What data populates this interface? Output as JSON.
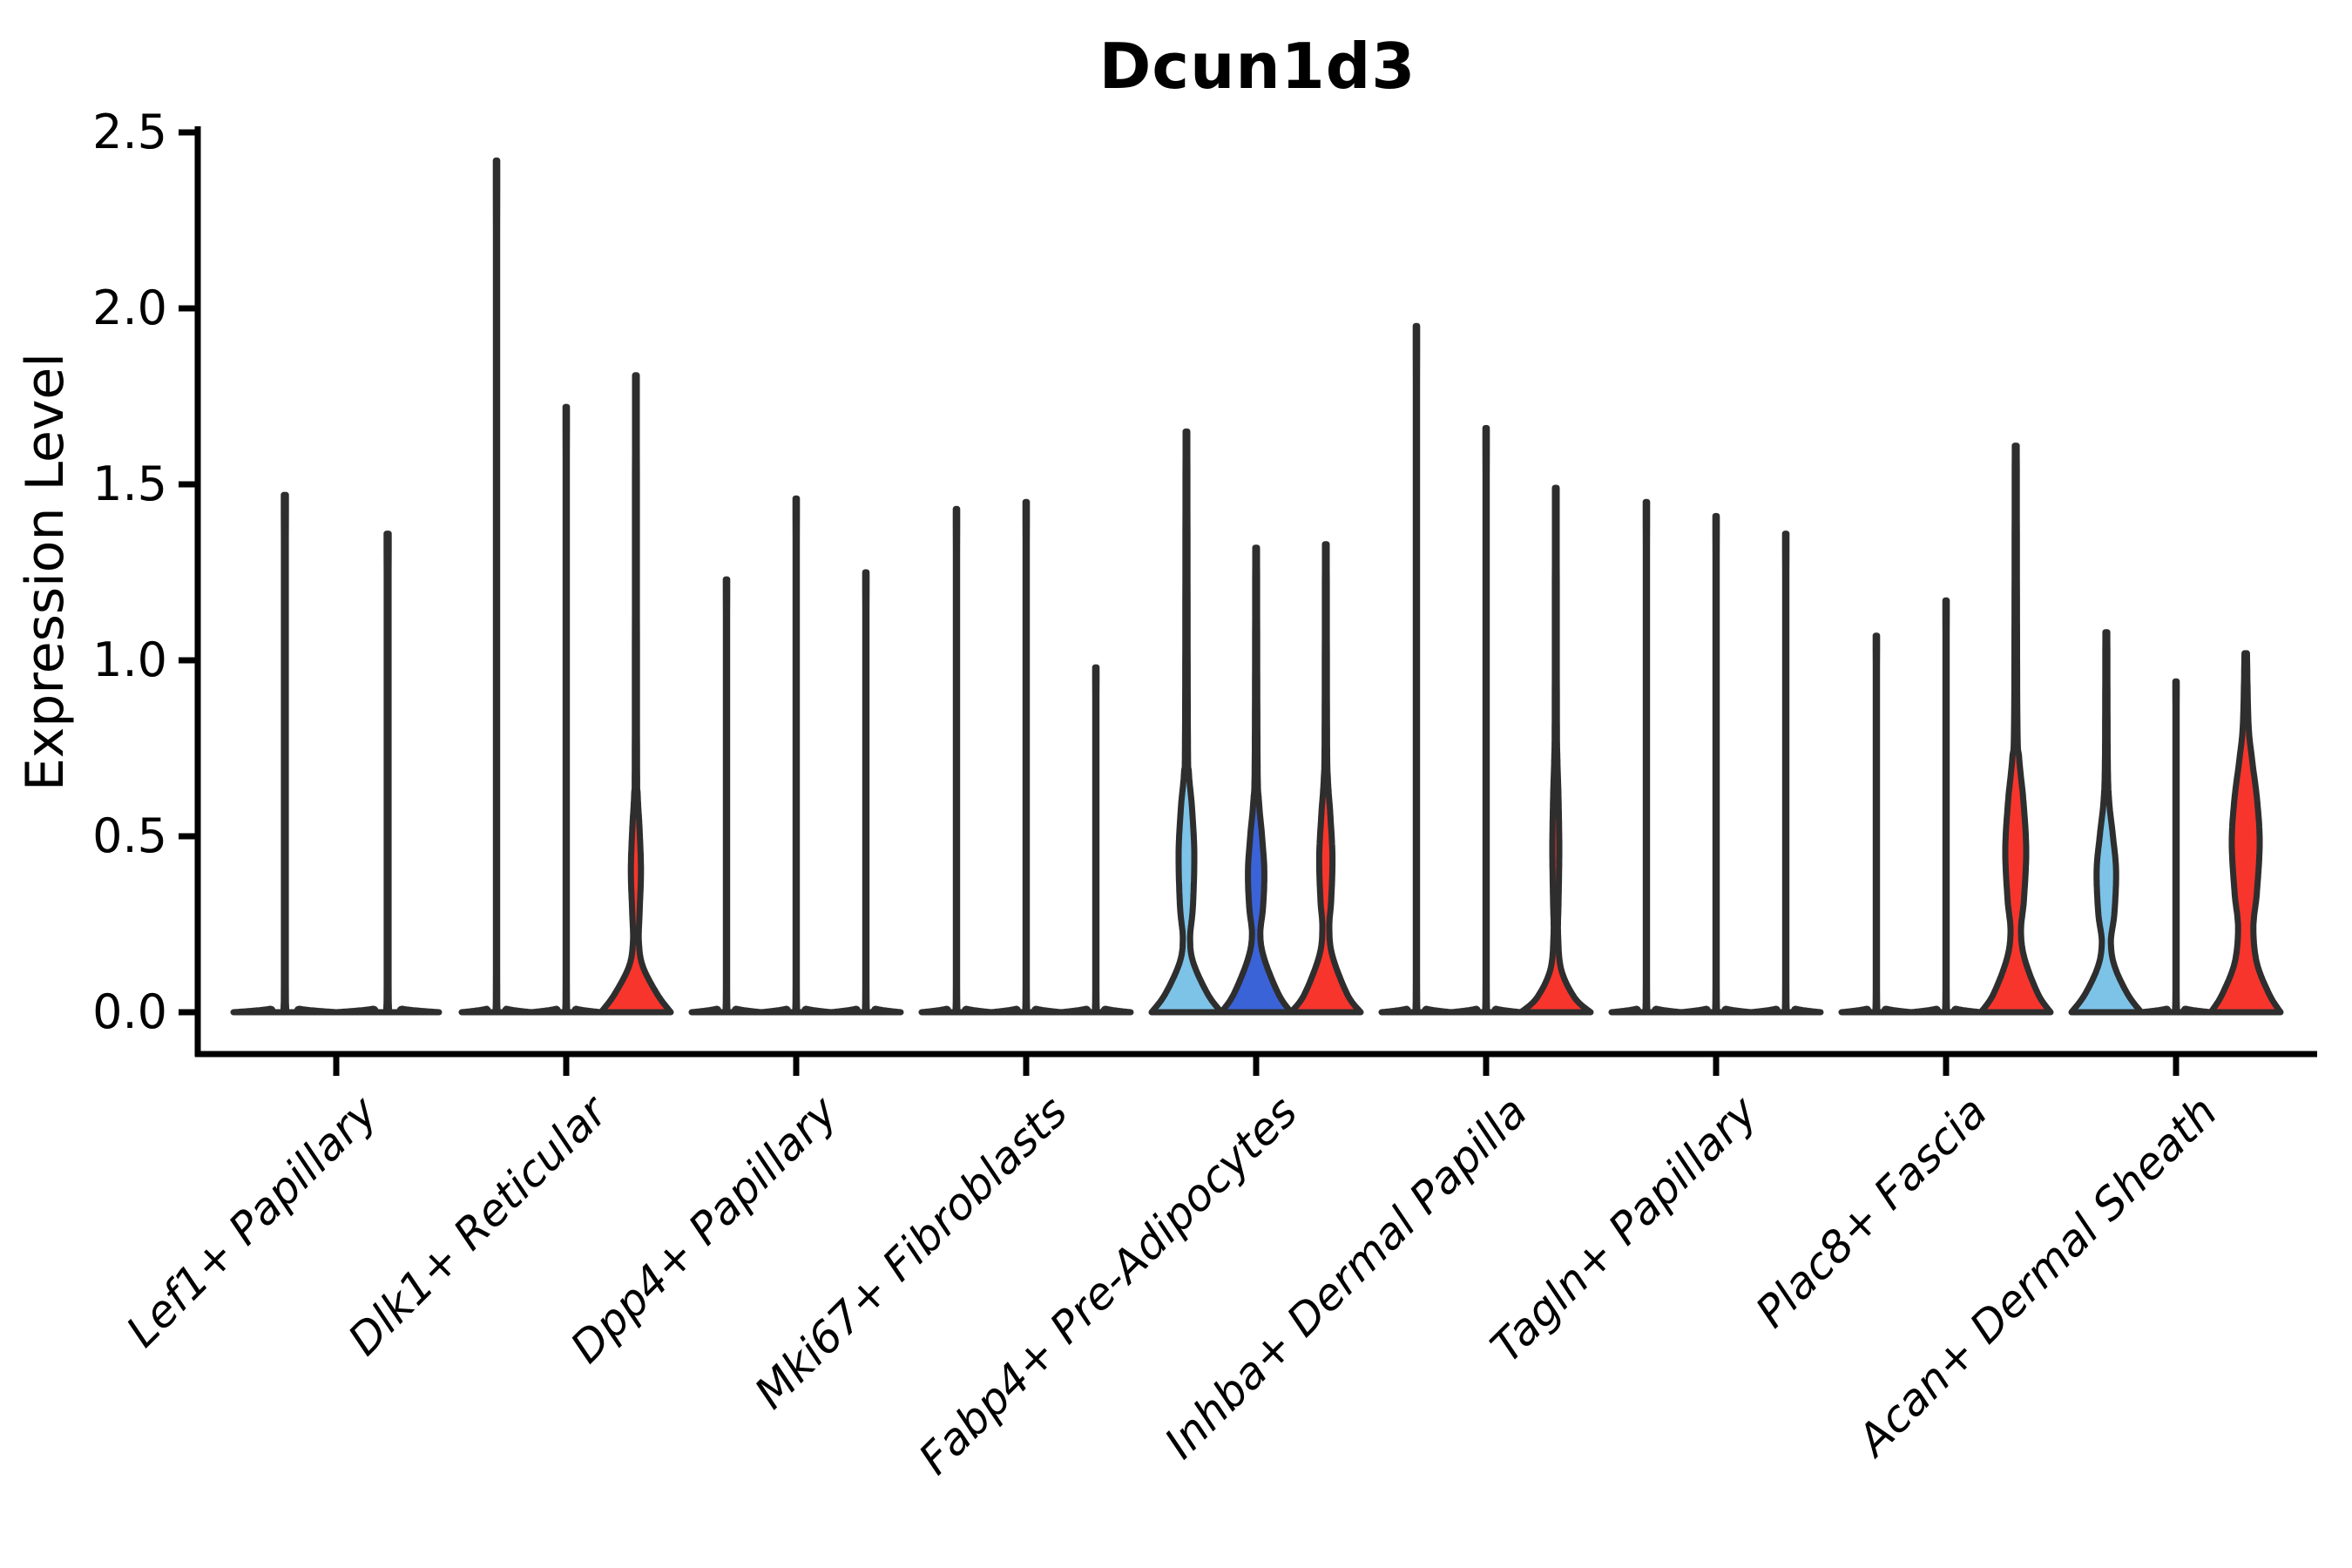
{
  "chart_data": {
    "type": "violin",
    "title": "Dcun1d3",
    "ylabel": "Expression Level",
    "xlabel": "",
    "ylim": [
      0,
      2.5
    ],
    "ytick_values": [
      0,
      0.5,
      1.0,
      1.5,
      2.0,
      2.5
    ],
    "ytick_labels": [
      "0.0",
      "0.5",
      "1.0",
      "1.5",
      "2.0",
      "2.5"
    ],
    "grid": false,
    "legend": "none",
    "xtick_rotation_deg": 45,
    "palette": {
      "red": "#f8352c",
      "light_blue": "#7dc3e8",
      "dark_blue": "#3b63d8",
      "outline": "#2e2e2e",
      "axis": "#000000"
    },
    "categories": [
      "Lef1+ Papillary",
      "Dlk1+ Reticular",
      "Dpp4+ Papillary",
      "Mki67+ Fibroblasts",
      "Fabp4+ Pre-Adipocytes",
      "Inhba+ Dermal Papilla",
      "Tagln+ Papillary",
      "Plac8+ Fascia",
      "Acan+ Dermal Sheath"
    ],
    "groups": [
      {
        "label": "Lef1+ Papillary",
        "violins": [
          {
            "max": 1.47,
            "fill": null,
            "profile": [
              [
                0,
                1.0
              ],
              [
                0.01,
                0.28
              ],
              [
                0.03,
                0.02
              ],
              [
                1.47,
                0.02
              ]
            ]
          },
          {
            "max": 1.36,
            "fill": null,
            "profile": [
              [
                0,
                1.0
              ],
              [
                0.01,
                0.28
              ],
              [
                0.03,
                0.02
              ],
              [
                1.36,
                0.02
              ]
            ]
          }
        ]
      },
      {
        "label": "Dlk1+ Reticular",
        "violins": [
          {
            "max": 2.42,
            "fill": null,
            "profile": [
              [
                0,
                1.0
              ],
              [
                0.01,
                0.28
              ],
              [
                0.03,
                0.02
              ],
              [
                2.42,
                0.02
              ]
            ]
          },
          {
            "max": 1.72,
            "fill": null,
            "profile": [
              [
                0,
                1.0
              ],
              [
                0.01,
                0.28
              ],
              [
                0.03,
                0.02
              ],
              [
                1.72,
                0.02
              ]
            ]
          },
          {
            "max": 1.81,
            "fill": "red",
            "profile": [
              [
                0,
                1.0
              ],
              [
                0.05,
                0.62
              ],
              [
                0.13,
                0.2
              ],
              [
                0.2,
                0.085
              ],
              [
                0.28,
                0.105
              ],
              [
                0.4,
                0.145
              ],
              [
                0.52,
                0.105
              ],
              [
                0.62,
                0.05
              ],
              [
                0.75,
                0.032
              ],
              [
                1.81,
                0.025
              ]
            ]
          }
        ]
      },
      {
        "label": "Dpp4+ Papillary",
        "violins": [
          {
            "max": 1.23,
            "fill": null,
            "profile": [
              [
                0,
                1.0
              ],
              [
                0.01,
                0.28
              ],
              [
                0.03,
                0.02
              ],
              [
                1.23,
                0.02
              ]
            ]
          },
          {
            "max": 1.46,
            "fill": null,
            "profile": [
              [
                0,
                1.0
              ],
              [
                0.01,
                0.28
              ],
              [
                0.03,
                0.02
              ],
              [
                1.46,
                0.02
              ]
            ]
          },
          {
            "max": 1.25,
            "fill": null,
            "profile": [
              [
                0,
                1.0
              ],
              [
                0.01,
                0.28
              ],
              [
                0.03,
                0.02
              ],
              [
                1.25,
                0.02
              ]
            ]
          }
        ]
      },
      {
        "label": "Mki67+ Fibroblasts",
        "violins": [
          {
            "max": 1.43,
            "fill": null,
            "profile": [
              [
                0,
                1.0
              ],
              [
                0.01,
                0.28
              ],
              [
                0.03,
                0.02
              ],
              [
                1.43,
                0.02
              ]
            ]
          },
          {
            "max": 1.45,
            "fill": null,
            "profile": [
              [
                0,
                1.0
              ],
              [
                0.01,
                0.28
              ],
              [
                0.03,
                0.02
              ],
              [
                1.45,
                0.02
              ]
            ]
          },
          {
            "max": 0.98,
            "fill": null,
            "profile": [
              [
                0,
                1.0
              ],
              [
                0.01,
                0.28
              ],
              [
                0.03,
                0.02
              ],
              [
                0.98,
                0.02
              ]
            ]
          }
        ]
      },
      {
        "label": "Fabp4+ Pre-Adipocytes",
        "violins": [
          {
            "max": 1.65,
            "fill": "light_blue",
            "profile": [
              [
                0,
                1.0
              ],
              [
                0.05,
                0.62
              ],
              [
                0.14,
                0.2
              ],
              [
                0.21,
                0.105
              ],
              [
                0.3,
                0.185
              ],
              [
                0.45,
                0.225
              ],
              [
                0.58,
                0.16
              ],
              [
                0.68,
                0.07
              ],
              [
                0.8,
                0.04
              ],
              [
                1.65,
                0.025
              ]
            ]
          },
          {
            "max": 1.32,
            "fill": "dark_blue",
            "profile": [
              [
                0,
                1.0
              ],
              [
                0.05,
                0.65
              ],
              [
                0.15,
                0.24
              ],
              [
                0.22,
                0.12
              ],
              [
                0.3,
                0.2
              ],
              [
                0.4,
                0.235
              ],
              [
                0.5,
                0.17
              ],
              [
                0.6,
                0.08
              ],
              [
                0.72,
                0.04
              ],
              [
                1.32,
                0.025
              ]
            ]
          },
          {
            "max": 1.33,
            "fill": "red",
            "profile": [
              [
                0,
                1.0
              ],
              [
                0.05,
                0.62
              ],
              [
                0.16,
                0.19
              ],
              [
                0.24,
                0.1
              ],
              [
                0.32,
                0.155
              ],
              [
                0.44,
                0.19
              ],
              [
                0.56,
                0.13
              ],
              [
                0.66,
                0.06
              ],
              [
                0.78,
                0.035
              ],
              [
                1.33,
                0.025
              ]
            ]
          }
        ]
      },
      {
        "label": "Inhba+ Dermal Papilla",
        "violins": [
          {
            "max": 1.95,
            "fill": null,
            "profile": [
              [
                0,
                1.0
              ],
              [
                0.01,
                0.28
              ],
              [
                0.03,
                0.02
              ],
              [
                1.95,
                0.02
              ]
            ]
          },
          {
            "max": 1.66,
            "fill": null,
            "profile": [
              [
                0,
                1.0
              ],
              [
                0.01,
                0.28
              ],
              [
                0.03,
                0.02
              ],
              [
                1.66,
                0.02
              ]
            ]
          },
          {
            "max": 1.49,
            "fill": "red",
            "profile": [
              [
                0,
                1.0
              ],
              [
                0.04,
                0.55
              ],
              [
                0.12,
                0.16
              ],
              [
                0.22,
                0.065
              ],
              [
                0.32,
                0.08
              ],
              [
                0.46,
                0.1
              ],
              [
                0.6,
                0.08
              ],
              [
                0.72,
                0.045
              ],
              [
                0.85,
                0.03
              ],
              [
                1.49,
                0.025
              ]
            ]
          }
        ]
      },
      {
        "label": "Tagln+ Papillary",
        "violins": [
          {
            "max": 1.45,
            "fill": null,
            "profile": [
              [
                0,
                1.0
              ],
              [
                0.01,
                0.28
              ],
              [
                0.03,
                0.02
              ],
              [
                1.45,
                0.02
              ]
            ]
          },
          {
            "max": 1.41,
            "fill": null,
            "profile": [
              [
                0,
                1.0
              ],
              [
                0.01,
                0.28
              ],
              [
                0.03,
                0.02
              ],
              [
                1.41,
                0.02
              ]
            ]
          },
          {
            "max": 1.36,
            "fill": null,
            "profile": [
              [
                0,
                1.0
              ],
              [
                0.01,
                0.28
              ],
              [
                0.03,
                0.02
              ],
              [
                1.36,
                0.02
              ]
            ]
          }
        ]
      },
      {
        "label": "Plac8+ Fascia",
        "violins": [
          {
            "max": 1.07,
            "fill": null,
            "profile": [
              [
                0,
                1.0
              ],
              [
                0.01,
                0.28
              ],
              [
                0.03,
                0.02
              ],
              [
                1.07,
                0.02
              ]
            ]
          },
          {
            "max": 1.17,
            "fill": null,
            "profile": [
              [
                0,
                1.0
              ],
              [
                0.01,
                0.28
              ],
              [
                0.03,
                0.02
              ],
              [
                1.17,
                0.02
              ]
            ]
          },
          {
            "max": 1.61,
            "fill": "red",
            "profile": [
              [
                0,
                1.0
              ],
              [
                0.05,
                0.65
              ],
              [
                0.15,
                0.26
              ],
              [
                0.23,
                0.15
              ],
              [
                0.32,
                0.235
              ],
              [
                0.46,
                0.3
              ],
              [
                0.6,
                0.22
              ],
              [
                0.72,
                0.1
              ],
              [
                0.85,
                0.045
              ],
              [
                1.61,
                0.028
              ]
            ]
          }
        ]
      },
      {
        "label": "Acan+ Dermal Sheath",
        "violins": [
          {
            "max": 1.08,
            "fill": "light_blue",
            "profile": [
              [
                0,
                1.0
              ],
              [
                0.05,
                0.62
              ],
              [
                0.13,
                0.24
              ],
              [
                0.2,
                0.13
              ],
              [
                0.28,
                0.23
              ],
              [
                0.4,
                0.28
              ],
              [
                0.5,
                0.19
              ],
              [
                0.6,
                0.08
              ],
              [
                0.72,
                0.04
              ],
              [
                1.08,
                0.028
              ]
            ]
          },
          {
            "max": 0.94,
            "fill": null,
            "profile": [
              [
                0,
                1.0
              ],
              [
                0.01,
                0.28
              ],
              [
                0.03,
                0.02
              ],
              [
                0.94,
                0.02
              ]
            ]
          },
          {
            "max": 1.02,
            "fill": "red",
            "profile": [
              [
                0,
                1.0
              ],
              [
                0.05,
                0.68
              ],
              [
                0.14,
                0.32
              ],
              [
                0.24,
                0.22
              ],
              [
                0.34,
                0.32
              ],
              [
                0.48,
                0.4
              ],
              [
                0.6,
                0.33
              ],
              [
                0.72,
                0.18
              ],
              [
                0.82,
                0.08
              ],
              [
                1.02,
                0.035
              ]
            ]
          }
        ]
      }
    ]
  }
}
